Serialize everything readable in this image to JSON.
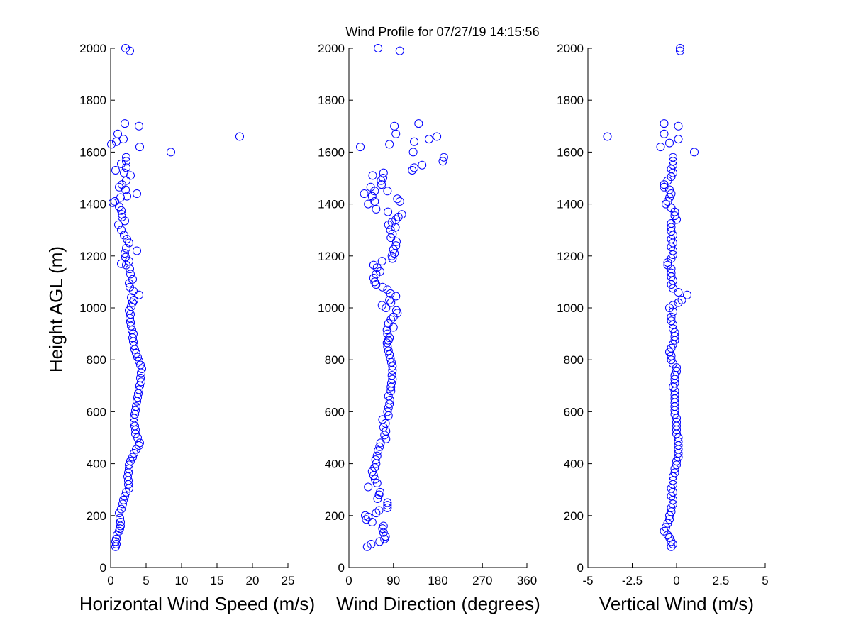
{
  "title": "Wind Profile for  07/27/19 14:15:56",
  "ylabel": "Height AGL (m)",
  "colors": {
    "marker": "#0000ff",
    "axis": "#000000",
    "background": "#ffffff"
  },
  "chart_data": [
    {
      "type": "scatter",
      "xlabel": "Horizontal Wind Speed (m/s)",
      "ylabel": "Height AGL (m)",
      "xlim": [
        0,
        25
      ],
      "ylim": [
        0,
        2000
      ],
      "xticks": [
        "0",
        "5",
        "10",
        "15",
        "20",
        "25"
      ],
      "yticks": [
        "0",
        "200",
        "400",
        "600",
        "800",
        "1000",
        "1200",
        "1400",
        "1600",
        "1800",
        "2000"
      ],
      "grid": false,
      "points": [
        [
          0.7,
          80
        ],
        [
          0.8,
          90
        ],
        [
          0.7,
          100
        ],
        [
          0.8,
          110
        ],
        [
          0.9,
          125
        ],
        [
          1.2,
          140
        ],
        [
          1.3,
          150
        ],
        [
          1.4,
          160
        ],
        [
          1.4,
          175
        ],
        [
          1.3,
          190
        ],
        [
          1.2,
          210
        ],
        [
          1.5,
          225
        ],
        [
          1.7,
          245
        ],
        [
          1.8,
          260
        ],
        [
          2.0,
          275
        ],
        [
          2.2,
          290
        ],
        [
          2.6,
          305
        ],
        [
          2.5,
          320
        ],
        [
          2.5,
          335
        ],
        [
          2.4,
          350
        ],
        [
          2.5,
          365
        ],
        [
          2.6,
          380
        ],
        [
          2.6,
          395
        ],
        [
          2.8,
          410
        ],
        [
          3.1,
          425
        ],
        [
          3.3,
          440
        ],
        [
          3.6,
          455
        ],
        [
          4.0,
          470
        ],
        [
          4.1,
          480
        ],
        [
          3.8,
          500
        ],
        [
          3.5,
          515
        ],
        [
          3.5,
          530
        ],
        [
          3.4,
          545
        ],
        [
          3.3,
          560
        ],
        [
          3.3,
          575
        ],
        [
          3.4,
          590
        ],
        [
          3.5,
          605
        ],
        [
          3.6,
          620
        ],
        [
          3.7,
          640
        ],
        [
          3.8,
          655
        ],
        [
          3.9,
          670
        ],
        [
          4.0,
          685
        ],
        [
          4.1,
          700
        ],
        [
          4.3,
          715
        ],
        [
          4.2,
          730
        ],
        [
          4.3,
          750
        ],
        [
          4.4,
          765
        ],
        [
          4.2,
          780
        ],
        [
          4.0,
          795
        ],
        [
          3.8,
          810
        ],
        [
          3.6,
          825
        ],
        [
          3.4,
          840
        ],
        [
          3.3,
          855
        ],
        [
          3.2,
          870
        ],
        [
          3.1,
          885
        ],
        [
          3.2,
          900
        ],
        [
          3.0,
          915
        ],
        [
          2.9,
          930
        ],
        [
          2.8,
          945
        ],
        [
          2.7,
          960
        ],
        [
          2.8,
          975
        ],
        [
          2.6,
          990
        ],
        [
          2.9,
          1005
        ],
        [
          3.1,
          1020
        ],
        [
          3.3,
          1030
        ],
        [
          2.9,
          1040
        ],
        [
          4.0,
          1050
        ],
        [
          3.2,
          1065
        ],
        [
          2.7,
          1080
        ],
        [
          2.6,
          1095
        ],
        [
          3.1,
          1110
        ],
        [
          2.8,
          1130
        ],
        [
          2.7,
          1150
        ],
        [
          2.2,
          1165
        ],
        [
          1.5,
          1170
        ],
        [
          2.6,
          1180
        ],
        [
          2.1,
          1195
        ],
        [
          2.0,
          1210
        ],
        [
          3.7,
          1220
        ],
        [
          2.2,
          1230
        ],
        [
          2.6,
          1250
        ],
        [
          2.3,
          1265
        ],
        [
          1.9,
          1280
        ],
        [
          1.5,
          1300
        ],
        [
          1.1,
          1320
        ],
        [
          2.0,
          1335
        ],
        [
          1.6,
          1350
        ],
        [
          1.6,
          1360
        ],
        [
          1.5,
          1375
        ],
        [
          1.2,
          1390
        ],
        [
          0.3,
          1405
        ],
        [
          0.6,
          1410
        ],
        [
          1.4,
          1425
        ],
        [
          2.3,
          1430
        ],
        [
          3.7,
          1440
        ],
        [
          2.1,
          1455
        ],
        [
          1.2,
          1465
        ],
        [
          1.6,
          1475
        ],
        [
          2.2,
          1490
        ],
        [
          2.8,
          1510
        ],
        [
          1.9,
          1520
        ],
        [
          0.7,
          1530
        ],
        [
          2.2,
          1540
        ],
        [
          1.5,
          1555
        ],
        [
          2.2,
          1565
        ],
        [
          2.2,
          1580
        ],
        [
          8.5,
          1600
        ],
        [
          4.1,
          1620
        ],
        [
          0.1,
          1630
        ],
        [
          0.8,
          1640
        ],
        [
          1.8,
          1650
        ],
        [
          18.2,
          1660
        ],
        [
          1.0,
          1670
        ],
        [
          4.0,
          1700
        ],
        [
          2.0,
          1710
        ],
        [
          2.7,
          1990
        ],
        [
          2.1,
          2000
        ]
      ]
    },
    {
      "type": "scatter",
      "xlabel": "Wind Direction (degrees)",
      "xlim": [
        0,
        360
      ],
      "ylim": [
        0,
        2000
      ],
      "xticks": [
        "0",
        "90",
        "180",
        "270",
        "360"
      ],
      "yticks": [
        "0",
        "200",
        "400",
        "600",
        "800",
        "1000",
        "1200",
        "1400",
        "1600",
        "1800",
        "2000"
      ],
      "grid": false,
      "points": [
        [
          37,
          80
        ],
        [
          45,
          90
        ],
        [
          62,
          100
        ],
        [
          72,
          110
        ],
        [
          74,
          120
        ],
        [
          70,
          135
        ],
        [
          68,
          150
        ],
        [
          70,
          160
        ],
        [
          47,
          175
        ],
        [
          35,
          185
        ],
        [
          39,
          195
        ],
        [
          33,
          200
        ],
        [
          55,
          210
        ],
        [
          61,
          220
        ],
        [
          78,
          230
        ],
        [
          78,
          240
        ],
        [
          78,
          250
        ],
        [
          58,
          265
        ],
        [
          61,
          280
        ],
        [
          63,
          290
        ],
        [
          39,
          310
        ],
        [
          57,
          325
        ],
        [
          53,
          340
        ],
        [
          50,
          355
        ],
        [
          47,
          370
        ],
        [
          52,
          385
        ],
        [
          55,
          400
        ],
        [
          54,
          415
        ],
        [
          57,
          430
        ],
        [
          59,
          450
        ],
        [
          62,
          465
        ],
        [
          64,
          480
        ],
        [
          75,
          495
        ],
        [
          72,
          510
        ],
        [
          75,
          525
        ],
        [
          70,
          540
        ],
        [
          74,
          555
        ],
        [
          68,
          570
        ],
        [
          80,
          585
        ],
        [
          78,
          600
        ],
        [
          80,
          615
        ],
        [
          82,
          630
        ],
        [
          83,
          645
        ],
        [
          80,
          660
        ],
        [
          85,
          680
        ],
        [
          85,
          695
        ],
        [
          86,
          710
        ],
        [
          88,
          725
        ],
        [
          87,
          740
        ],
        [
          88,
          760
        ],
        [
          88,
          775
        ],
        [
          86,
          790
        ],
        [
          84,
          805
        ],
        [
          82,
          820
        ],
        [
          80,
          835
        ],
        [
          78,
          850
        ],
        [
          77,
          865
        ],
        [
          80,
          875
        ],
        [
          82,
          885
        ],
        [
          78,
          900
        ],
        [
          77,
          915
        ],
        [
          90,
          925
        ],
        [
          80,
          940
        ],
        [
          85,
          955
        ],
        [
          90,
          965
        ],
        [
          98,
          980
        ],
        [
          96,
          990
        ],
        [
          75,
          1000
        ],
        [
          67,
          1010
        ],
        [
          85,
          1020
        ],
        [
          82,
          1030
        ],
        [
          95,
          1045
        ],
        [
          84,
          1055
        ],
        [
          78,
          1070
        ],
        [
          68,
          1080
        ],
        [
          55,
          1090
        ],
        [
          52,
          1100
        ],
        [
          50,
          1115
        ],
        [
          55,
          1130
        ],
        [
          63,
          1140
        ],
        [
          57,
          1155
        ],
        [
          50,
          1165
        ],
        [
          67,
          1180
        ],
        [
          88,
          1190
        ],
        [
          87,
          1200
        ],
        [
          92,
          1210
        ],
        [
          90,
          1225
        ],
        [
          95,
          1240
        ],
        [
          96,
          1255
        ],
        [
          85,
          1270
        ],
        [
          88,
          1285
        ],
        [
          84,
          1300
        ],
        [
          94,
          1310
        ],
        [
          80,
          1320
        ],
        [
          87,
          1330
        ],
        [
          95,
          1340
        ],
        [
          100,
          1350
        ],
        [
          107,
          1360
        ],
        [
          79,
          1370
        ],
        [
          55,
          1380
        ],
        [
          39,
          1400
        ],
        [
          52,
          1410
        ],
        [
          103,
          1410
        ],
        [
          98,
          1420
        ],
        [
          47,
          1430
        ],
        [
          31,
          1440
        ],
        [
          52,
          1450
        ],
        [
          78,
          1450
        ],
        [
          44,
          1465
        ],
        [
          66,
          1475
        ],
        [
          65,
          1490
        ],
        [
          69,
          1500
        ],
        [
          48,
          1510
        ],
        [
          70,
          1520
        ],
        [
          128,
          1530
        ],
        [
          132,
          1540
        ],
        [
          148,
          1550
        ],
        [
          190,
          1565
        ],
        [
          192,
          1580
        ],
        [
          130,
          1600
        ],
        [
          23,
          1620
        ],
        [
          82,
          1630
        ],
        [
          132,
          1640
        ],
        [
          162,
          1650
        ],
        [
          178,
          1660
        ],
        [
          95,
          1670
        ],
        [
          92,
          1700
        ],
        [
          141,
          1710
        ],
        [
          59,
          2000
        ],
        [
          103,
          1990
        ]
      ]
    },
    {
      "type": "scatter",
      "xlabel": "Vertical Wind (m/s)",
      "xlim": [
        -5,
        5
      ],
      "ylim": [
        0,
        2000
      ],
      "xticks": [
        "-5",
        "-2.5",
        "0",
        "2.5",
        "5"
      ],
      "yticks": [
        "0",
        "200",
        "400",
        "600",
        "800",
        "1000",
        "1200",
        "1400",
        "1600",
        "1800",
        "2000"
      ],
      "grid": false,
      "points": [
        [
          -0.3,
          80
        ],
        [
          -0.2,
          90
        ],
        [
          -0.3,
          100
        ],
        [
          -0.4,
          115
        ],
        [
          -0.5,
          125
        ],
        [
          -0.7,
          140
        ],
        [
          -0.6,
          155
        ],
        [
          -0.5,
          170
        ],
        [
          -0.4,
          185
        ],
        [
          -0.4,
          200
        ],
        [
          -0.3,
          215
        ],
        [
          -0.3,
          230
        ],
        [
          -0.2,
          245
        ],
        [
          -0.2,
          260
        ],
        [
          -0.3,
          275
        ],
        [
          -0.2,
          290
        ],
        [
          -0.3,
          305
        ],
        [
          -0.2,
          320
        ],
        [
          -0.2,
          335
        ],
        [
          -0.2,
          350
        ],
        [
          -0.1,
          365
        ],
        [
          -0.1,
          380
        ],
        [
          0.0,
          395
        ],
        [
          0.0,
          410
        ],
        [
          0.1,
          425
        ],
        [
          0.1,
          440
        ],
        [
          0.1,
          455
        ],
        [
          0.1,
          470
        ],
        [
          0.1,
          485
        ],
        [
          0.1,
          500
        ],
        [
          0.0,
          515
        ],
        [
          0.0,
          530
        ],
        [
          0.0,
          545
        ],
        [
          0.0,
          560
        ],
        [
          0.0,
          575
        ],
        [
          -0.1,
          590
        ],
        [
          -0.1,
          605
        ],
        [
          -0.1,
          620
        ],
        [
          -0.1,
          635
        ],
        [
          -0.1,
          650
        ],
        [
          -0.1,
          665
        ],
        [
          -0.1,
          680
        ],
        [
          -0.2,
          695
        ],
        [
          -0.1,
          710
        ],
        [
          -0.1,
          725
        ],
        [
          -0.1,
          740
        ],
        [
          0.0,
          755
        ],
        [
          0.0,
          770
        ],
        [
          -0.2,
          785
        ],
        [
          -0.3,
          800
        ],
        [
          -0.3,
          815
        ],
        [
          -0.4,
          830
        ],
        [
          -0.3,
          845
        ],
        [
          -0.2,
          860
        ],
        [
          -0.1,
          875
        ],
        [
          -0.1,
          890
        ],
        [
          -0.1,
          905
        ],
        [
          -0.2,
          920
        ],
        [
          -0.2,
          935
        ],
        [
          -0.3,
          950
        ],
        [
          -0.3,
          965
        ],
        [
          -0.2,
          985
        ],
        [
          -0.4,
          1000
        ],
        [
          -0.2,
          1010
        ],
        [
          0.1,
          1020
        ],
        [
          0.3,
          1030
        ],
        [
          0.6,
          1050
        ],
        [
          0.1,
          1060
        ],
        [
          -0.2,
          1075
        ],
        [
          -0.3,
          1090
        ],
        [
          -0.2,
          1105
        ],
        [
          -0.3,
          1120
        ],
        [
          -0.3,
          1135
        ],
        [
          -0.3,
          1150
        ],
        [
          -0.5,
          1165
        ],
        [
          -0.5,
          1175
        ],
        [
          -0.3,
          1190
        ],
        [
          -0.2,
          1205
        ],
        [
          -0.2,
          1220
        ],
        [
          -0.3,
          1235
        ],
        [
          -0.2,
          1250
        ],
        [
          -0.3,
          1265
        ],
        [
          -0.2,
          1280
        ],
        [
          -0.3,
          1295
        ],
        [
          -0.3,
          1310
        ],
        [
          -0.3,
          1325
        ],
        [
          0.0,
          1340
        ],
        [
          -0.1,
          1355
        ],
        [
          -0.1,
          1370
        ],
        [
          -0.3,
          1385
        ],
        [
          -0.6,
          1400
        ],
        [
          -0.5,
          1410
        ],
        [
          -0.4,
          1425
        ],
        [
          -0.3,
          1440
        ],
        [
          -0.4,
          1455
        ],
        [
          -0.7,
          1465
        ],
        [
          -0.7,
          1475
        ],
        [
          -0.5,
          1490
        ],
        [
          -0.3,
          1505
        ],
        [
          -0.2,
          1520
        ],
        [
          -0.3,
          1535
        ],
        [
          -0.2,
          1550
        ],
        [
          -0.2,
          1565
        ],
        [
          -0.2,
          1580
        ],
        [
          1.0,
          1600
        ],
        [
          -0.9,
          1620
        ],
        [
          -0.4,
          1635
        ],
        [
          0.1,
          1650
        ],
        [
          -3.9,
          1660
        ],
        [
          -0.7,
          1670
        ],
        [
          0.1,
          1700
        ],
        [
          -0.7,
          1710
        ],
        [
          0.2,
          1990
        ],
        [
          0.2,
          2000
        ]
      ]
    }
  ]
}
